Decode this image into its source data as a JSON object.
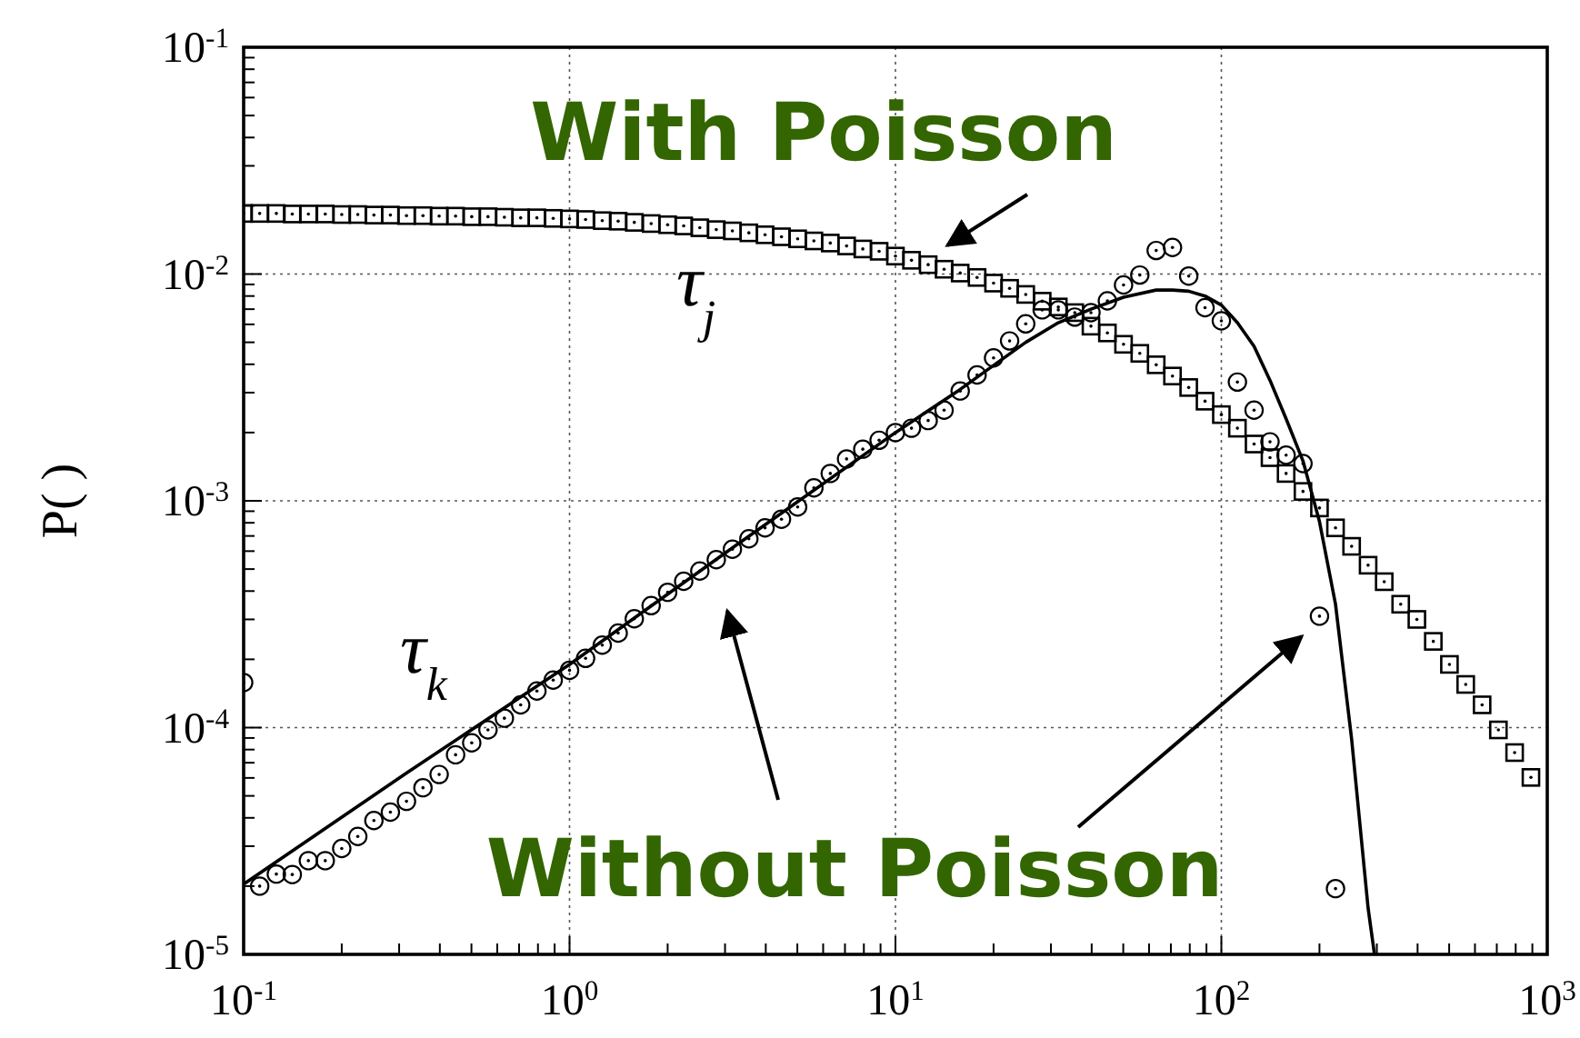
{
  "chart_data": {
    "type": "scatter",
    "ylabel": "P( )",
    "log": "xy",
    "grid": true,
    "xlim": [
      0.1,
      1000
    ],
    "ylim": [
      1e-05,
      0.1
    ],
    "xticks": [
      {
        "value": 0.1,
        "label": "10$^{-1}$"
      },
      {
        "value": 0.2,
        "label": null
      },
      {
        "value": 0.3,
        "label": null
      },
      {
        "value": 0.4,
        "label": null
      },
      {
        "value": 0.5,
        "label": null
      },
      {
        "value": 0.6,
        "label": null
      },
      {
        "value": 0.7,
        "label": null
      },
      {
        "value": 0.8,
        "label": null
      },
      {
        "value": 0.9,
        "label": null
      },
      {
        "value": 1,
        "label": "10$^{0}$"
      },
      {
        "value": 2,
        "label": null
      },
      {
        "value": 3,
        "label": null
      },
      {
        "value": 4,
        "label": null
      },
      {
        "value": 5,
        "label": null
      },
      {
        "value": 6,
        "label": null
      },
      {
        "value": 7,
        "label": null
      },
      {
        "value": 8,
        "label": null
      },
      {
        "value": 9,
        "label": null
      },
      {
        "value": 10,
        "label": "10$^{1}$"
      },
      {
        "value": 20,
        "label": null
      },
      {
        "value": 30,
        "label": null
      },
      {
        "value": 40,
        "label": null
      },
      {
        "value": 50,
        "label": null
      },
      {
        "value": 60,
        "label": null
      },
      {
        "value": 70,
        "label": null
      },
      {
        "value": 80,
        "label": null
      },
      {
        "value": 90,
        "label": null
      },
      {
        "value": 100,
        "label": "10$^{2}$"
      },
      {
        "value": 200,
        "label": null
      },
      {
        "value": 300,
        "label": null
      },
      {
        "value": 400,
        "label": null
      },
      {
        "value": 500,
        "label": null
      },
      {
        "value": 600,
        "label": null
      },
      {
        "value": 700,
        "label": null
      },
      {
        "value": 800,
        "label": null
      },
      {
        "value": 900,
        "label": null
      },
      {
        "value": 1000,
        "label": "10$^{3}$"
      }
    ],
    "yticks": [
      {
        "value": 1e-05,
        "label": "10$^{-5}$"
      },
      {
        "value": 2e-05,
        "label": null
      },
      {
        "value": 3e-05,
        "label": null
      },
      {
        "value": 4e-05,
        "label": null
      },
      {
        "value": 5e-05,
        "label": null
      },
      {
        "value": 6e-05,
        "label": null
      },
      {
        "value": 7e-05,
        "label": null
      },
      {
        "value": 8e-05,
        "label": null
      },
      {
        "value": 9e-05,
        "label": null
      },
      {
        "value": 0.0001,
        "label": "10$^{-4}$"
      },
      {
        "value": 0.0002,
        "label": null
      },
      {
        "value": 0.0003,
        "label": null
      },
      {
        "value": 0.0004,
        "label": null
      },
      {
        "value": 0.0005,
        "label": null
      },
      {
        "value": 0.0006,
        "label": null
      },
      {
        "value": 0.0007,
        "label": null
      },
      {
        "value": 0.0008,
        "label": null
      },
      {
        "value": 0.0009,
        "label": null
      },
      {
        "value": 0.001,
        "label": "10$^{-3}$"
      },
      {
        "value": 0.002,
        "label": null
      },
      {
        "value": 0.003,
        "label": null
      },
      {
        "value": 0.004,
        "label": null
      },
      {
        "value": 0.005,
        "label": null
      },
      {
        "value": 0.006,
        "label": null
      },
      {
        "value": 0.007,
        "label": null
      },
      {
        "value": 0.008,
        "label": null
      },
      {
        "value": 0.009,
        "label": null
      },
      {
        "value": 0.01,
        "label": "10$^{-2}$"
      },
      {
        "value": 0.02,
        "label": null
      },
      {
        "value": 0.03,
        "label": null
      },
      {
        "value": 0.04,
        "label": null
      },
      {
        "value": 0.05,
        "label": null
      },
      {
        "value": 0.06,
        "label": null
      },
      {
        "value": 0.07,
        "label": null
      },
      {
        "value": 0.08,
        "label": null
      },
      {
        "value": 0.09,
        "label": null
      },
      {
        "value": 0.1,
        "label": "10$^{-1}$"
      }
    ],
    "annotations": [
      "With Poisson",
      "Without Poisson"
    ],
    "series": [
      {
        "name": "τ$_{j}$",
        "color": "#000000",
        "marker": "square",
        "x": [
          0.1,
          0.112,
          0.126,
          0.141,
          0.158,
          0.178,
          0.2,
          0.224,
          0.251,
          0.282,
          0.316,
          0.355,
          0.398,
          0.447,
          0.501,
          0.562,
          0.631,
          0.708,
          0.794,
          0.891,
          1,
          1.12,
          1.26,
          1.41,
          1.58,
          1.78,
          2,
          2.24,
          2.51,
          2.82,
          3.16,
          3.55,
          3.98,
          4.47,
          5.01,
          5.62,
          6.31,
          7.08,
          7.94,
          8.91,
          10,
          11.2,
          12.6,
          14.1,
          15.8,
          17.8,
          20,
          22.4,
          25.1,
          28.2,
          31.6,
          35.5,
          39.8,
          44.7,
          50.1,
          56.2,
          63.1,
          70.8,
          79.4,
          89.1,
          100,
          112,
          126,
          141,
          158,
          178,
          200,
          224,
          251,
          282,
          316,
          355,
          398,
          447,
          501,
          562,
          631,
          708,
          794,
          891
        ],
        "values": [
          0.0185,
          0.0185,
          0.0185,
          0.0184,
          0.0184,
          0.0184,
          0.0183,
          0.0183,
          0.0182,
          0.0182,
          0.0181,
          0.0181,
          0.018,
          0.018,
          0.0179,
          0.0179,
          0.0178,
          0.0177,
          0.0177,
          0.0176,
          0.0175,
          0.0174,
          0.0172,
          0.0171,
          0.0169,
          0.0167,
          0.0165,
          0.0163,
          0.016,
          0.0157,
          0.0155,
          0.0152,
          0.0149,
          0.0146,
          0.0143,
          0.014,
          0.0137,
          0.0133,
          0.0129,
          0.0126,
          0.012,
          0.0115,
          0.011,
          0.0105,
          0.0101,
          0.00966,
          0.00912,
          0.00865,
          0.00813,
          0.00759,
          0.00716,
          0.00676,
          0.00589,
          0.0055,
          0.0049,
          0.00447,
          0.00398,
          0.00355,
          0.00316,
          0.00275,
          0.0024,
          0.00209,
          0.00178,
          0.00155,
          0.00132,
          0.0011,
          0.00093,
          0.00076,
          0.00063,
          0.00052,
          0.00044,
          0.00035,
          0.0003,
          0.00024,
          0.00019,
          0.000155,
          0.000126,
          9.77e-05,
          7.76e-05,
          6.03e-05
        ]
      },
      {
        "name": "τ$_{k}$",
        "color": "#000000",
        "marker": "circle",
        "x": [
          0.1,
          0.112,
          0.126,
          0.141,
          0.158,
          0.178,
          0.2,
          0.224,
          0.251,
          0.282,
          0.316,
          0.355,
          0.398,
          0.447,
          0.501,
          0.562,
          0.631,
          0.708,
          0.794,
          0.891,
          1,
          1.12,
          1.26,
          1.41,
          1.58,
          1.78,
          2,
          2.24,
          2.51,
          2.82,
          3.16,
          3.55,
          3.98,
          4.47,
          5.01,
          5.62,
          6.31,
          7.08,
          7.94,
          8.91,
          10,
          11.2,
          12.6,
          14.1,
          15.8,
          17.8,
          20,
          22.4,
          25.1,
          28.2,
          31.6,
          35.5,
          39.8,
          44.7,
          50.1,
          56.2,
          63.1,
          70.8,
          79.4,
          89.1,
          100,
          112,
          126,
          141,
          158,
          178,
          200,
          224
        ],
        "values": [
          0.000158,
          2e-05,
          2.26e-05,
          2.25e-05,
          2.59e-05,
          2.59e-05,
          2.93e-05,
          3.31e-05,
          3.89e-05,
          4.24e-05,
          4.73e-05,
          5.43e-05,
          6.21e-05,
          7.59e-05,
          8.57e-05,
          9.77e-05,
          0.00011,
          0.000126,
          0.000145,
          0.000162,
          0.000179,
          0.000202,
          0.000231,
          0.000261,
          0.000302,
          0.000345,
          0.000395,
          0.000442,
          0.00049,
          0.00055,
          0.000612,
          0.00068,
          0.00076,
          0.00083,
          0.00094,
          0.00114,
          0.00132,
          0.00153,
          0.00169,
          0.00185,
          0.002,
          0.00209,
          0.00226,
          0.00251,
          0.00305,
          0.00359,
          0.00427,
          0.00507,
          0.00603,
          0.00695,
          0.00695,
          0.00646,
          0.00676,
          0.00762,
          0.00895,
          0.0099,
          0.0127,
          0.0131,
          0.0098,
          0.00711,
          0.00622,
          0.00334,
          0.00251,
          0.00182,
          0.00159,
          0.00146,
          0.00031,
          1.95e-05
        ]
      },
      {
        "type": "line",
        "color": "#000000",
        "line_style": "solid",
        "x": [
          0.1,
          0.316,
          1,
          3.16,
          10,
          15.8,
          25.1,
          31.6,
          39.8,
          50.1,
          63.1,
          70.8,
          79.4,
          89.1,
          100,
          112,
          126,
          141,
          158,
          178,
          200,
          224,
          251,
          282,
          295
        ],
        "values": [
          2.04e-05,
          6.3e-05,
          0.00019,
          0.00062,
          0.002,
          0.0031,
          0.005,
          0.0061,
          0.007,
          0.0079,
          0.0085,
          0.0085,
          0.0084,
          0.008,
          0.0073,
          0.0061,
          0.0048,
          0.0034,
          0.0023,
          0.0015,
          0.00081,
          0.00035,
          8.9e-05,
          1.6e-05,
          1e-05
        ]
      }
    ]
  }
}
